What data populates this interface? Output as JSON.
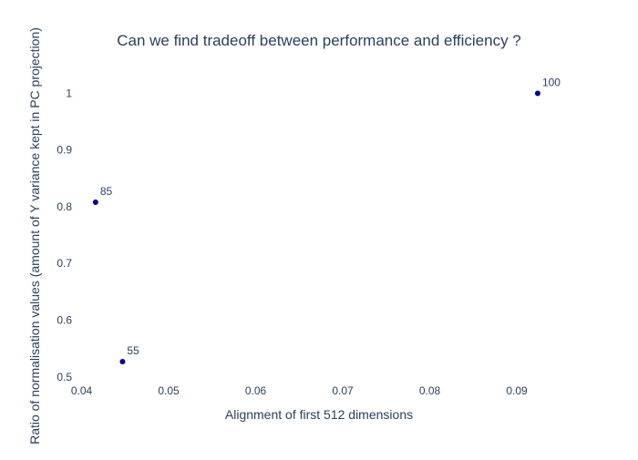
{
  "chart_data": {
    "type": "scatter",
    "title": "Can we find tradeoff between performance and efficiency ?",
    "xlabel": "Alignment of first 512 dimensions",
    "ylabel": "Ratio of normalisation values (amount of Y variance kept in PC projection)",
    "xlim": [
      0.039,
      0.0945
    ],
    "ylim": [
      0.49,
      1.02
    ],
    "x_ticks": [
      0.04,
      0.05,
      0.06,
      0.07,
      0.08,
      0.09
    ],
    "x_tick_labels": [
      "0.04",
      "0.05",
      "0.06",
      "0.07",
      "0.08",
      "0.09"
    ],
    "y_ticks": [
      0.5,
      0.6,
      0.7,
      0.8,
      0.9,
      1.0
    ],
    "y_tick_labels": [
      "0.5",
      "0.6",
      "0.7",
      "0.8",
      "0.9",
      "1"
    ],
    "grid": false,
    "legend": "none",
    "marker_color": "#00008b",
    "text_color": "#2a3f5f",
    "points": [
      {
        "x": 0.0416,
        "y": 0.808,
        "label": "85"
      },
      {
        "x": 0.0447,
        "y": 0.527,
        "label": "55"
      },
      {
        "x": 0.0924,
        "y": 1.0,
        "label": "100"
      }
    ]
  }
}
